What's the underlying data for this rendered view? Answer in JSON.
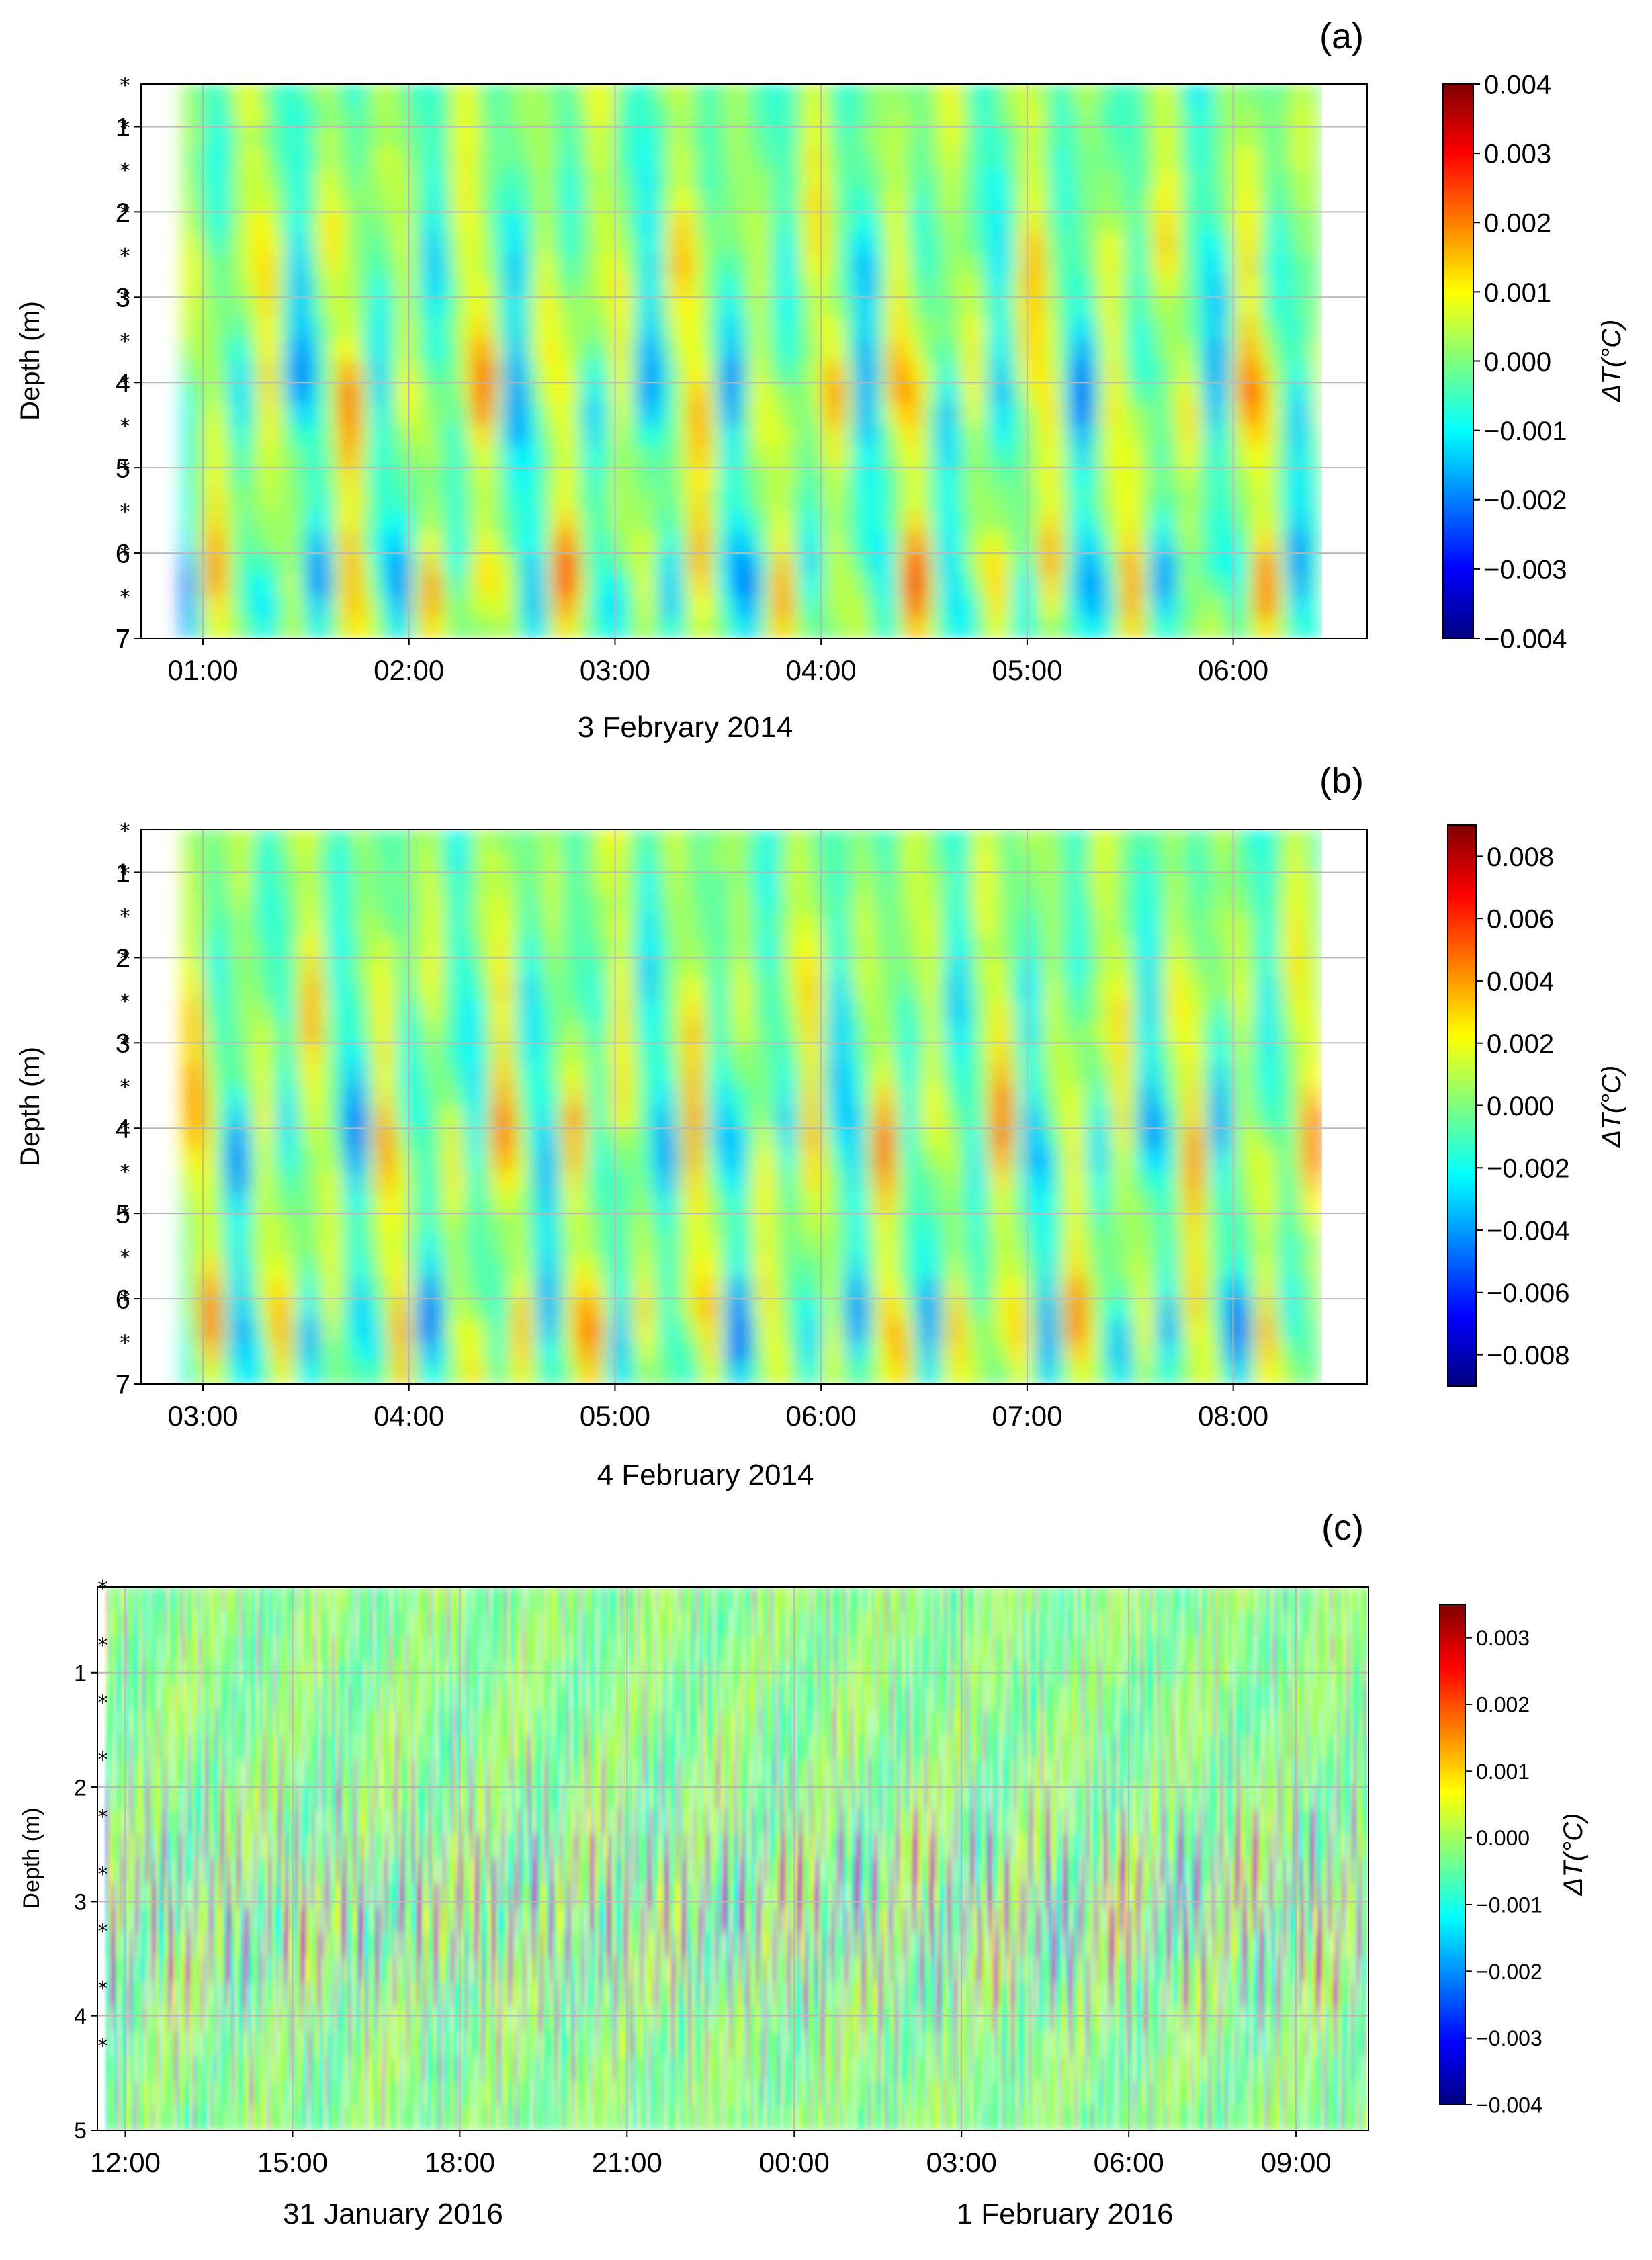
{
  "colormap_stops": [
    "#00007f",
    "#0000ff",
    "#007fff",
    "#00ffff",
    "#7fff7f",
    "#ffff00",
    "#ff7f00",
    "#ff0000",
    "#7f0000"
  ],
  "chart_data": [
    {
      "type": "heatmap",
      "panel_label": "(a)",
      "title": "",
      "xlabel": "3 Febryary 2014",
      "ylabel": "Depth (m)",
      "x_ticks": [
        "01:00",
        "02:00",
        "03:00",
        "04:00",
        "05:00",
        "06:00"
      ],
      "x_tick_hours": [
        1,
        2,
        3,
        4,
        5,
        6
      ],
      "x_range_hours": [
        0.7,
        6.65
      ],
      "data_x_end_hours": 6.42,
      "y_ticks": [
        "1",
        "2",
        "3",
        "4",
        "5",
        "6",
        "7"
      ],
      "y_tick_values": [
        1,
        2,
        3,
        4,
        5,
        6,
        7
      ],
      "y_range": [
        7,
        0.5
      ],
      "sensor_depths": [
        0.5,
        1,
        1.5,
        2,
        2.5,
        3,
        3.5,
        4,
        4.5,
        5,
        5.5,
        6,
        6.5
      ],
      "grid": true,
      "colorbar_label": "ΔT(°C)",
      "colorbar_ticks": [
        "0.004",
        "0.003",
        "0.002",
        "0.001",
        "0.000",
        "−0.001",
        "−0.002",
        "−0.003",
        "−0.004"
      ],
      "colorbar_tick_values": [
        0.004,
        0.003,
        0.002,
        0.001,
        0.0,
        -0.001,
        -0.002,
        -0.003,
        -0.004
      ],
      "colorbar_range": [
        -0.004,
        0.004
      ],
      "dominant_period_hours": 0.34
    },
    {
      "type": "heatmap",
      "panel_label": "(b)",
      "title": "",
      "xlabel": "4 February 2014",
      "ylabel": "Depth (m)",
      "x_ticks": [
        "03:00",
        "04:00",
        "05:00",
        "06:00",
        "07:00",
        "08:00"
      ],
      "x_tick_hours": [
        3,
        4,
        5,
        6,
        7,
        8
      ],
      "x_range_hours": [
        2.7,
        8.65
      ],
      "data_x_end_hours": 8.42,
      "y_ticks": [
        "1",
        "2",
        "3",
        "4",
        "5",
        "6",
        "7"
      ],
      "y_tick_values": [
        1,
        2,
        3,
        4,
        5,
        6,
        7
      ],
      "y_range": [
        7,
        0.5
      ],
      "sensor_depths": [
        0.5,
        1,
        1.5,
        2,
        2.5,
        3,
        3.5,
        4,
        4.5,
        5,
        5.5,
        6,
        6.5
      ],
      "grid": true,
      "colorbar_label": "ΔT(°C)",
      "colorbar_ticks": [
        "0.008",
        "0.006",
        "0.004",
        "0.002",
        "0.000",
        "−0.002",
        "−0.004",
        "−0.006",
        "−0.008"
      ],
      "colorbar_tick_values": [
        0.008,
        0.006,
        0.004,
        0.002,
        0.0,
        -0.002,
        -0.004,
        -0.006,
        -0.008
      ],
      "colorbar_range": [
        -0.009,
        0.009
      ],
      "dominant_period_hours": 0.3
    },
    {
      "type": "heatmap",
      "panel_label": "(c)",
      "title": "",
      "xlabel": "",
      "date_labels": [
        "31 January 2016",
        "1 February 2016"
      ],
      "ylabel": "Depth (m)",
      "x_ticks": [
        "12:00",
        "15:00",
        "18:00",
        "21:00",
        "00:00",
        "03:00",
        "06:00",
        "09:00"
      ],
      "x_tick_hours": [
        12,
        15,
        18,
        21,
        24,
        27,
        30,
        33
      ],
      "x_range_hours": [
        11.5,
        34.3
      ],
      "data_x_end_hours": 34.3,
      "y_ticks": [
        "1",
        "2",
        "3",
        "4",
        "5"
      ],
      "y_tick_values": [
        1,
        2,
        3,
        4,
        5
      ],
      "y_range": [
        5,
        0.25
      ],
      "sensor_depths": [
        0.25,
        0.75,
        1.25,
        1.75,
        2.25,
        2.75,
        3.25,
        3.75,
        4.25
      ],
      "grid": true,
      "colorbar_label": "ΔT(°C)",
      "colorbar_ticks": [
        "0.003",
        "0.002",
        "0.001",
        "0.000",
        "−0.001",
        "−0.002",
        "−0.003",
        "−0.004"
      ],
      "colorbar_tick_values": [
        0.003,
        0.002,
        0.001,
        0.0,
        -0.001,
        -0.002,
        -0.003,
        -0.004
      ],
      "colorbar_range": [
        -0.004,
        0.0035
      ],
      "dominant_period_hours": 0.1
    }
  ]
}
